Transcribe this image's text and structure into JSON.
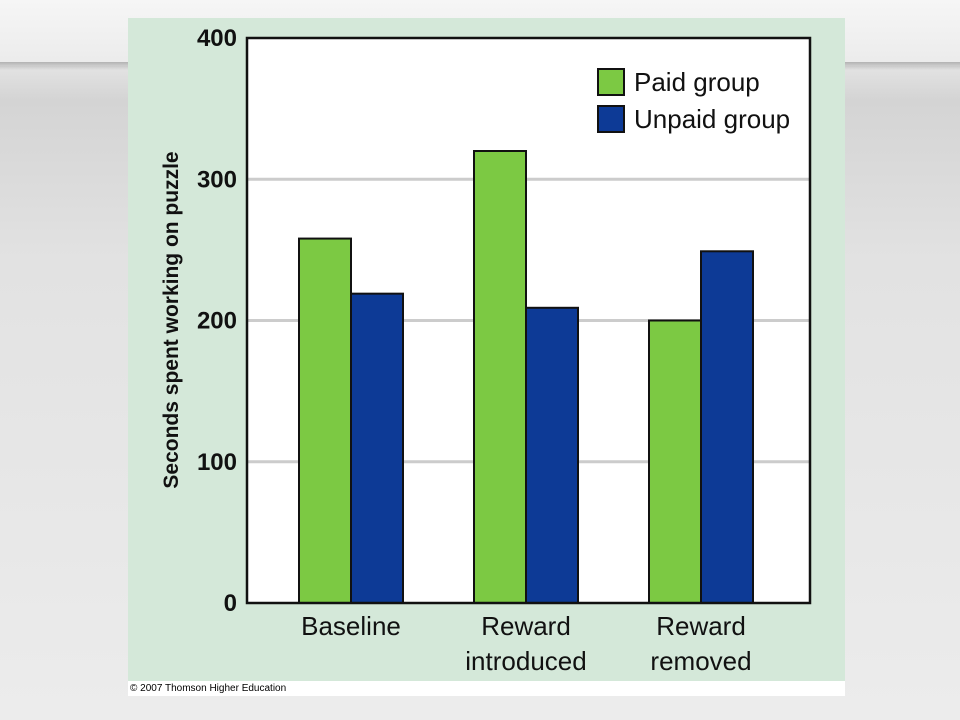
{
  "copyright": "© 2007 Thomson Higher Education",
  "colors": {
    "panel_background": "#d4e8d9",
    "plot_background": "#ffffff",
    "gridline": "#cccccc",
    "paid": "#7cc943",
    "unpaid": "#0d3a96"
  },
  "chart_data": {
    "type": "bar",
    "title": "",
    "xlabel": "",
    "ylabel": "Seconds spent working on puzzle",
    "categories": [
      [
        "Baseline"
      ],
      [
        "Reward",
        "introduced"
      ],
      [
        "Reward",
        "removed"
      ]
    ],
    "series": [
      {
        "name": "Paid group",
        "color": "#7cc943",
        "values": [
          258,
          320,
          200
        ]
      },
      {
        "name": "Unpaid group",
        "color": "#0d3a96",
        "values": [
          219,
          209,
          249
        ]
      }
    ],
    "ylim": [
      0,
      400
    ],
    "yticks": [
      0,
      100,
      200,
      300,
      400
    ],
    "grid": true,
    "legend_position": "top-right"
  }
}
